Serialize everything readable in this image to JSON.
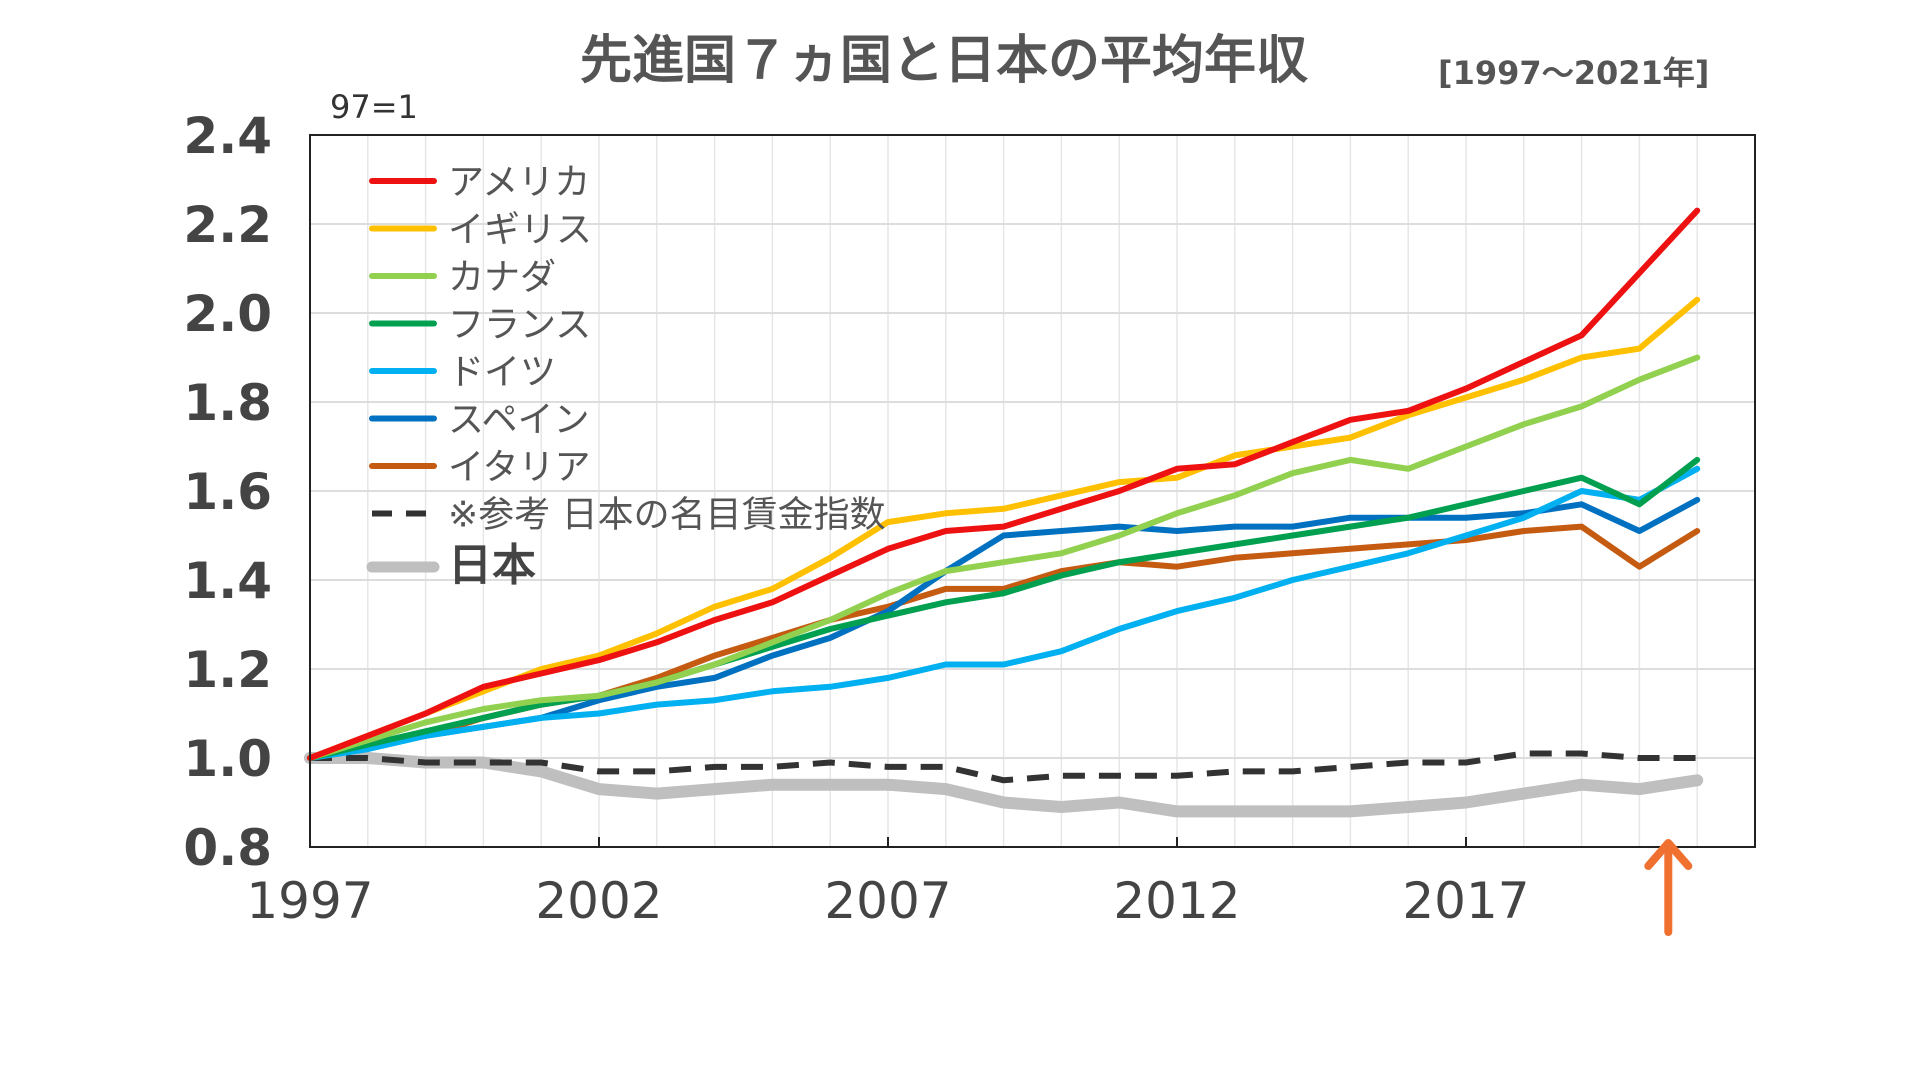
{
  "chart_data": {
    "type": "line",
    "title": "先進国７ヵ国と日本の平均年収",
    "subtitle": "[1997～2021年]",
    "unit_note": "97=1",
    "ylim": [
      0.8,
      2.4
    ],
    "yticks": [
      "0.8",
      "1.0",
      "1.2",
      "1.4",
      "1.6",
      "1.8",
      "2.0",
      "2.2",
      "2.4"
    ],
    "ytick_values": [
      0.8,
      1.0,
      1.2,
      1.4,
      1.6,
      1.8,
      2.0,
      2.2,
      2.4
    ],
    "xlim": [
      1997,
      2022
    ],
    "xticks": [
      "1997",
      "2002",
      "2007",
      "2012",
      "2017"
    ],
    "xtick_values": [
      1997,
      2002,
      2007,
      2012,
      2017
    ],
    "x": [
      1997,
      1998,
      1999,
      2000,
      2001,
      2002,
      2003,
      2004,
      2005,
      2006,
      2007,
      2008,
      2009,
      2010,
      2011,
      2012,
      2013,
      2014,
      2015,
      2016,
      2017,
      2018,
      2019,
      2020,
      2021
    ],
    "grid": true,
    "legend_position": "top-left",
    "highlight_arrow_year": 2020.5,
    "series": [
      {
        "name": "アメリカ",
        "color": "#ee1111",
        "width": 6,
        "dash": "",
        "values": [
          1.0,
          1.05,
          1.1,
          1.16,
          1.19,
          1.22,
          1.26,
          1.31,
          1.35,
          1.41,
          1.47,
          1.51,
          1.52,
          1.56,
          1.6,
          1.65,
          1.66,
          1.71,
          1.76,
          1.78,
          1.83,
          1.89,
          1.95,
          2.09,
          2.23
        ]
      },
      {
        "name": "イギリス",
        "color": "#ffc000",
        "width": 6,
        "dash": "",
        "values": [
          1.0,
          1.05,
          1.1,
          1.15,
          1.2,
          1.23,
          1.28,
          1.34,
          1.38,
          1.45,
          1.53,
          1.55,
          1.56,
          1.59,
          1.62,
          1.63,
          1.68,
          1.7,
          1.72,
          1.77,
          1.81,
          1.85,
          1.9,
          1.92,
          2.03
        ]
      },
      {
        "name": "カナダ",
        "color": "#92d050",
        "width": 6,
        "dash": "",
        "values": [
          1.0,
          1.04,
          1.08,
          1.11,
          1.13,
          1.14,
          1.17,
          1.21,
          1.26,
          1.31,
          1.37,
          1.42,
          1.44,
          1.46,
          1.5,
          1.55,
          1.59,
          1.64,
          1.67,
          1.65,
          1.7,
          1.75,
          1.79,
          1.85,
          1.9
        ]
      },
      {
        "name": "フランス",
        "color": "#00a050",
        "width": 6,
        "dash": "",
        "values": [
          1.0,
          1.03,
          1.06,
          1.09,
          1.12,
          1.14,
          1.17,
          1.21,
          1.25,
          1.29,
          1.32,
          1.35,
          1.37,
          1.41,
          1.44,
          1.46,
          1.48,
          1.5,
          1.52,
          1.54,
          1.57,
          1.6,
          1.63,
          1.57,
          1.67
        ]
      },
      {
        "name": "ドイツ",
        "color": "#00b0f0",
        "width": 6,
        "dash": "",
        "values": [
          1.0,
          1.02,
          1.05,
          1.07,
          1.09,
          1.1,
          1.12,
          1.13,
          1.15,
          1.16,
          1.18,
          1.21,
          1.21,
          1.24,
          1.29,
          1.33,
          1.36,
          1.4,
          1.43,
          1.46,
          1.5,
          1.54,
          1.6,
          1.58,
          1.65
        ]
      },
      {
        "name": "スペイン",
        "color": "#0070c0",
        "width": 6,
        "dash": "",
        "values": [
          1.0,
          1.03,
          1.05,
          1.07,
          1.09,
          1.13,
          1.16,
          1.18,
          1.23,
          1.27,
          1.33,
          1.42,
          1.5,
          1.51,
          1.52,
          1.51,
          1.52,
          1.52,
          1.54,
          1.54,
          1.54,
          1.55,
          1.57,
          1.51,
          1.58
        ]
      },
      {
        "name": "イタリア",
        "color": "#c55a11",
        "width": 6,
        "dash": "",
        "values": [
          1.0,
          1.03,
          1.05,
          1.09,
          1.12,
          1.14,
          1.18,
          1.23,
          1.27,
          1.31,
          1.34,
          1.38,
          1.38,
          1.42,
          1.44,
          1.43,
          1.45,
          1.46,
          1.47,
          1.48,
          1.49,
          1.51,
          1.52,
          1.43,
          1.51
        ]
      },
      {
        "name": "※参考  日本の名目賃金指数",
        "color": "#333333",
        "width": 6,
        "dash": "22 14",
        "values": [
          1.0,
          1.0,
          0.99,
          0.99,
          0.99,
          0.97,
          0.97,
          0.98,
          0.98,
          0.99,
          0.98,
          0.98,
          0.95,
          0.96,
          0.96,
          0.96,
          0.97,
          0.97,
          0.98,
          0.99,
          0.99,
          1.01,
          1.01,
          1.0,
          1.0
        ]
      },
      {
        "name": "日本",
        "color": "#bfbfbf",
        "width": 12,
        "dash": "",
        "values": [
          1.0,
          1.0,
          0.99,
          0.99,
          0.97,
          0.93,
          0.92,
          0.93,
          0.94,
          0.94,
          0.94,
          0.93,
          0.9,
          0.89,
          0.9,
          0.88,
          0.88,
          0.88,
          0.88,
          0.89,
          0.9,
          0.92,
          0.94,
          0.93,
          0.95
        ]
      }
    ]
  }
}
